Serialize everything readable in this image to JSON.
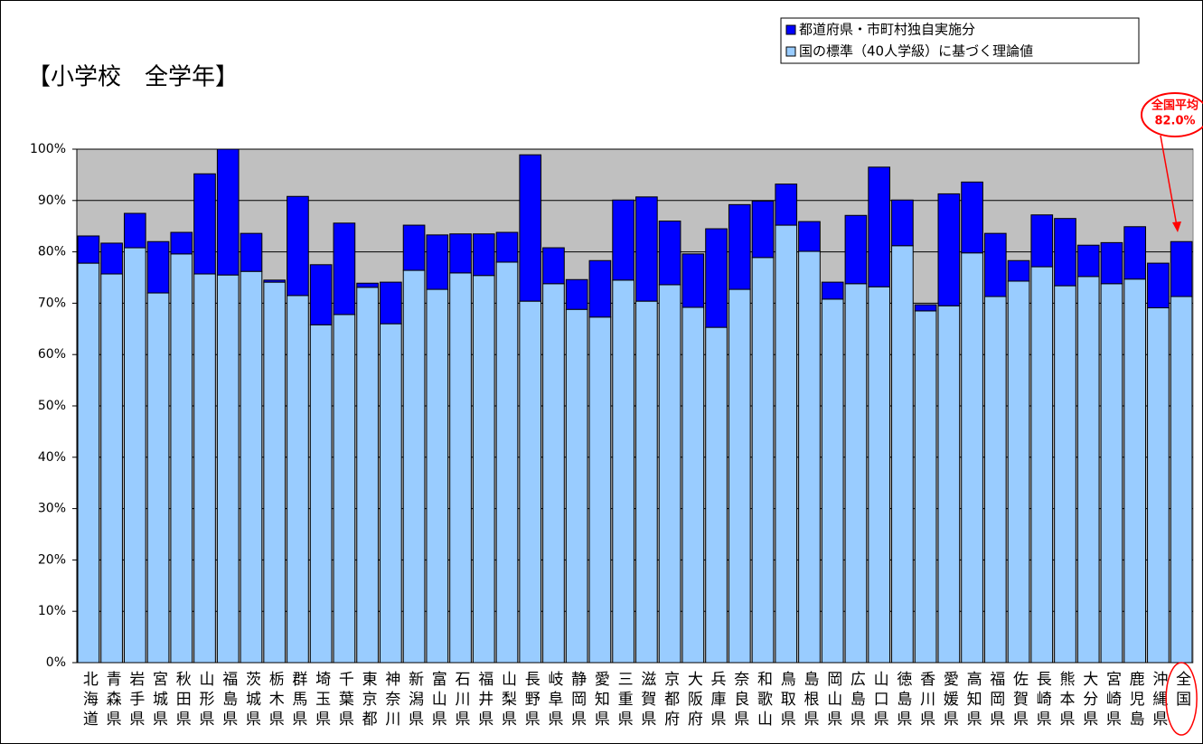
{
  "chart_data": {
    "type": "stacked_bar",
    "title": "【小学校　全学年】",
    "categories": [
      "北海道",
      "青森県",
      "岩手県",
      "宮城県",
      "秋田県",
      "山形県",
      "福島県",
      "茨城県",
      "栃木県",
      "群馬県",
      "埼玉県",
      "千葉県",
      "東京都",
      "神奈川",
      "新潟県",
      "富山県",
      "石川県",
      "福井県",
      "山梨県",
      "長野県",
      "岐阜県",
      "静岡県",
      "愛知県",
      "三重県",
      "滋賀県",
      "京都府",
      "大阪府",
      "兵庫県",
      "奈良県",
      "和歌山",
      "鳥取県",
      "島根県",
      "岡山県",
      "広島県",
      "山口県",
      "徳島県",
      "香川県",
      "愛媛県",
      "高知県",
      "福岡県",
      "佐賀県",
      "長崎県",
      "熊本県",
      "大分県",
      "宮崎県",
      "鹿児島",
      "沖縄県",
      "全国"
    ],
    "series": [
      {
        "name": "国の標準（40人学級）に基づく理論値",
        "color": "#99ccff",
        "values": [
          77.8,
          75.7,
          80.8,
          72.0,
          79.6,
          75.7,
          75.5,
          76.2,
          74.1,
          71.5,
          65.8,
          67.8,
          73.1,
          66.0,
          76.4,
          72.7,
          75.9,
          75.4,
          78.0,
          70.4,
          73.8,
          68.8,
          67.3,
          74.5,
          70.4,
          73.6,
          69.2,
          65.3,
          72.7,
          78.9,
          85.2,
          80.1,
          70.8,
          73.8,
          73.2,
          81.2,
          68.5,
          69.5,
          79.8,
          71.3,
          74.3,
          77.1,
          73.4,
          75.2,
          73.8,
          74.7,
          69.1,
          71.3
        ]
      },
      {
        "name": "都道府県・市町村独自実施分",
        "color": "#0000ff",
        "values": [
          5.3,
          6.0,
          6.7,
          10.0,
          4.2,
          19.5,
          24.5,
          7.4,
          0.4,
          19.3,
          11.7,
          17.8,
          0.8,
          8.1,
          8.8,
          10.6,
          7.6,
          8.1,
          5.8,
          28.5,
          7.0,
          5.8,
          11.0,
          15.6,
          20.3,
          12.4,
          10.4,
          19.2,
          16.5,
          11.0,
          8.0,
          5.8,
          3.3,
          13.3,
          23.3,
          8.9,
          1.2,
          21.8,
          13.8,
          12.3,
          4.0,
          10.1,
          13.1,
          6.1,
          8.0,
          10.2,
          8.7,
          10.7
        ]
      }
    ],
    "ylim": [
      0,
      100
    ],
    "yticks": [
      {
        "value": 0,
        "label": "0%"
      },
      {
        "value": 10,
        "label": "10%"
      },
      {
        "value": 20,
        "label": "20%"
      },
      {
        "value": 30,
        "label": "30%"
      },
      {
        "value": 40,
        "label": "40%"
      },
      {
        "value": 50,
        "label": "50%"
      },
      {
        "value": 60,
        "label": "60%"
      },
      {
        "value": 70,
        "label": "70%"
      },
      {
        "value": 80,
        "label": "80%"
      },
      {
        "value": 90,
        "label": "90%"
      },
      {
        "value": 100,
        "label": "100%"
      }
    ],
    "grid": true,
    "legend": "top-right",
    "plot_background": "#c0c0c0",
    "annotation": [
      "全国平均",
      "82.0%"
    ],
    "annotation_color": "#ff0000"
  }
}
